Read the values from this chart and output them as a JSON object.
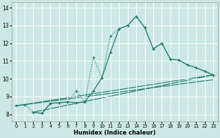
{
  "xlabel": "Humidex (Indice chaleur)",
  "background_color": "#cce8e4",
  "grid_color": "#ffffff",
  "line_color": "#1a7a6e",
  "xlim": [
    -0.5,
    23.5
  ],
  "ylim": [
    7.6,
    14.3
  ],
  "xticks": [
    0,
    1,
    2,
    3,
    4,
    5,
    6,
    7,
    8,
    9,
    10,
    11,
    12,
    13,
    14,
    15,
    16,
    17,
    18,
    19,
    20,
    21,
    22,
    23
  ],
  "yticks": [
    8,
    9,
    10,
    11,
    12,
    13,
    14
  ],
  "curve1_x": [
    0,
    1,
    2,
    3,
    4,
    5,
    6,
    7,
    8,
    9,
    10,
    11,
    12,
    13,
    14,
    15,
    16,
    17,
    18,
    19,
    20,
    21,
    22,
    23
  ],
  "curve1_y": [
    8.48,
    8.55,
    8.12,
    8.05,
    8.62,
    8.65,
    8.7,
    9.32,
    8.68,
    11.2,
    10.05,
    12.42,
    12.82,
    13.0,
    13.52,
    12.88,
    11.68,
    12.0,
    11.1,
    11.05,
    10.78,
    10.62,
    10.42,
    10.22
  ],
  "curve2_x": [
    2,
    3,
    4,
    5,
    6,
    7,
    8,
    9,
    10,
    11,
    12,
    13,
    14,
    15,
    16,
    17,
    18,
    19,
    20,
    21,
    22,
    23
  ],
  "curve2_y": [
    8.12,
    8.05,
    8.62,
    8.65,
    8.7,
    8.65,
    8.7,
    9.32,
    10.05,
    11.5,
    12.82,
    13.0,
    13.52,
    12.88,
    11.68,
    12.0,
    11.1,
    11.05,
    10.78,
    10.62,
    10.42,
    10.22
  ],
  "line1_x": [
    0,
    23
  ],
  "line1_y": [
    8.48,
    10.22
  ],
  "line2_x": [
    0,
    23
  ],
  "line2_y": [
    8.48,
    9.95
  ],
  "line3_x": [
    2,
    23
  ],
  "line3_y": [
    8.12,
    10.22
  ]
}
